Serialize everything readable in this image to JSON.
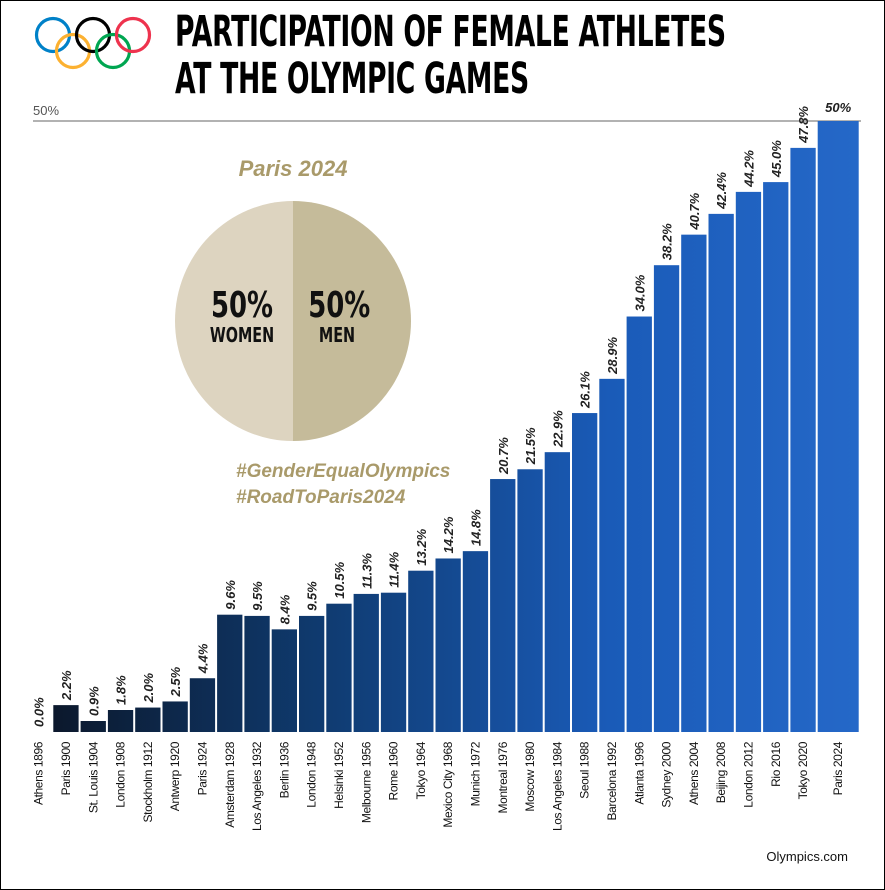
{
  "title_line1": "PARTICIPATION OF FEMALE ATHLETES",
  "title_line2": "AT THE OLYMPIC GAMES",
  "logo": "olympic-rings",
  "colors": {
    "ring_blue": "#0081c8",
    "ring_black": "#000000",
    "ring_red": "#ee334e",
    "ring_yellow": "#fcb131",
    "ring_green": "#00a651",
    "gold_text": "#a99a6a",
    "pie_women": "#ddd4c0",
    "pie_men": "#c5bb9a",
    "bar_dark": "#0b1424",
    "bar_blue": "#1e63c4"
  },
  "pie": {
    "title": "Paris 2024",
    "women_value": "50%",
    "women_label": "WOMEN",
    "men_value": "50%",
    "men_label": "MEN",
    "women_share": 50,
    "men_share": 50
  },
  "hashtags": [
    "#GenderEqualOlympics",
    "#RoadToParis2024"
  ],
  "source": "Olympics.com",
  "chart_data": {
    "type": "bar",
    "title": "PARTICIPATION OF FEMALE ATHLETES AT THE OLYMPIC GAMES",
    "ylim": [
      0,
      50
    ],
    "y_tick_label": "50%",
    "grid": false,
    "categories": [
      "Athens 1896",
      "Paris 1900",
      "St. Louis 1904",
      "London 1908",
      "Stockholm 1912",
      "Antwerp 1920",
      "Paris 1924",
      "Amsterdam 1928",
      "Los Angeles 1932",
      "Berlin 1936",
      "London 1948",
      "Helsinki 1952",
      "Melbourne 1956",
      "Rome 1960",
      "Tokyo 1964",
      "Mexico City 1968",
      "Munich 1972",
      "Montreal 1976",
      "Moscow 1980",
      "Los Angeles 1984",
      "Seoul 1988",
      "Barcelona 1992",
      "Atlanta 1996",
      "Sydney 2000",
      "Athens 2004",
      "Beijing 2008",
      "London 2012",
      "Rio 2016",
      "Tokyo 2020",
      "Paris 2024"
    ],
    "values": [
      0.0,
      2.2,
      0.9,
      1.8,
      2.0,
      2.5,
      4.4,
      9.6,
      9.5,
      8.4,
      9.5,
      10.5,
      11.3,
      11.4,
      13.2,
      14.2,
      14.8,
      20.7,
      21.5,
      22.9,
      26.1,
      28.9,
      34.0,
      38.2,
      40.7,
      42.4,
      44.2,
      45.0,
      47.8,
      50
    ],
    "data_labels": [
      "0.0%",
      "2.2%",
      "0.9%",
      "1.8%",
      "2.0%",
      "2.5%",
      "4.4%",
      "9.6%",
      "9.5%",
      "8.4%",
      "9.5%",
      "10.5%",
      "11.3%",
      "11.4%",
      "13.2%",
      "14.2%",
      "14.8%",
      "20.7%",
      "21.5%",
      "22.9%",
      "26.1%",
      "28.9%",
      "34.0%",
      "38.2%",
      "40.7%",
      "42.4%",
      "44.2%",
      "45.0%",
      "47.8%",
      "50%"
    ]
  }
}
